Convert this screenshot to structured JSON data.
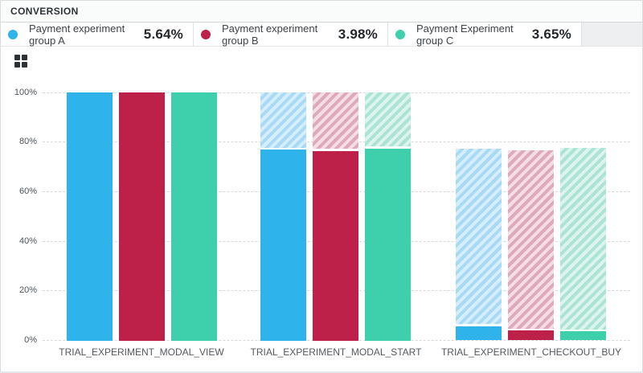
{
  "panel": {
    "title": "CONVERSION"
  },
  "legend": {
    "items": [
      {
        "label": "Payment experiment group A",
        "value": "5.64%",
        "color": "#2eb4ea"
      },
      {
        "label": "Payment experiment group B",
        "value": "3.98%",
        "color": "#bd2149"
      },
      {
        "label": "Payment Experiment group C",
        "value": "3.65%",
        "color": "#3ed0ac"
      }
    ]
  },
  "toolbar": {
    "grid_icon": "grid-view-icon"
  },
  "chart_data": {
    "type": "bar",
    "title": "CONVERSION",
    "categories": [
      "TRIAL_EXPERIMENT_MODAL_VIEW",
      "TRIAL_EXPERIMENT_MODAL_START",
      "TRIAL_EXPERIMENT_CHECKOUT_BUY"
    ],
    "series": [
      {
        "name": "Payment experiment group A",
        "color": "#2eb4ea",
        "hatch_bg": "#d6edfb",
        "hatch_stripe": "#a9daf5",
        "solid_pct": [
          100,
          77,
          5.64
        ],
        "carryover_pct": [
          100,
          100,
          77
        ]
      },
      {
        "name": "Payment experiment group B",
        "color": "#bd2149",
        "hatch_bg": "#f4dde4",
        "hatch_stripe": "#dfa9bc",
        "solid_pct": [
          100,
          76.5,
          3.98
        ],
        "carryover_pct": [
          100,
          100,
          76.5
        ]
      },
      {
        "name": "Payment Experiment group C",
        "color": "#3ed0ac",
        "hatch_bg": "#dcf4ed",
        "hatch_stripe": "#abe3d4",
        "solid_pct": [
          100,
          77.5,
          3.65
        ],
        "carryover_pct": [
          100,
          100,
          77.5
        ]
      }
    ],
    "xlabel": "",
    "ylabel": "",
    "ylim": [
      0,
      100
    ],
    "yticks": [
      "0%",
      "20%",
      "40%",
      "60%",
      "80%",
      "100%"
    ],
    "ytick_values": [
      0,
      20,
      40,
      60,
      80,
      100
    ],
    "grid": "horizontal-dashed",
    "legend_position": "top",
    "hatch_meaning": "carryover from previous funnel step (striped), solid = converted"
  }
}
